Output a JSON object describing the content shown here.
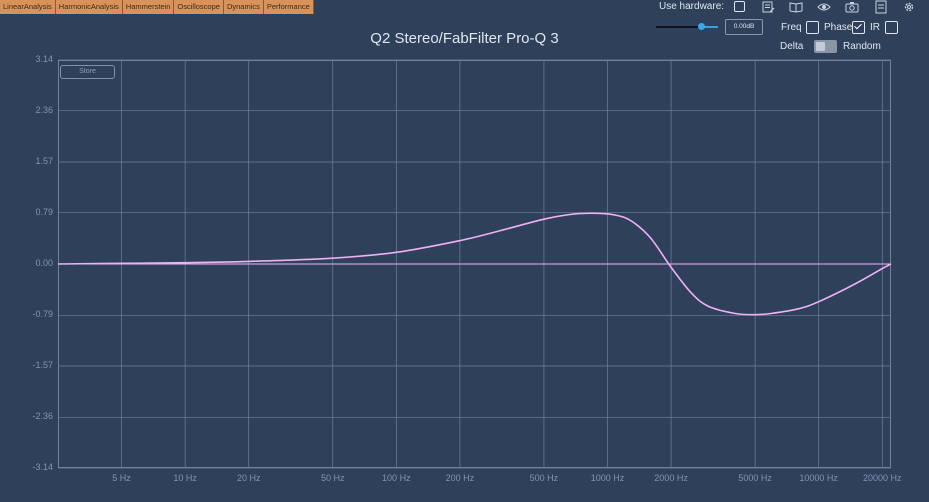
{
  "tabs": [
    "LinearAnalysis",
    "HarmonicAnalysis",
    "Hammerstein",
    "Oscilloscope",
    "Dynamics",
    "Performance"
  ],
  "header": {
    "title": "Q2 Stereo/FabFilter Pro-Q 3",
    "use_hardware_label": "Use hardware:",
    "gain_value": "0.00dB",
    "freq_label": "Freq",
    "phase_label": "Phase",
    "ir_label": "IR",
    "delta_label": "Delta",
    "random_label": "Random",
    "store_label": "Store"
  },
  "toolbar_icons": [
    "notes-icon",
    "book-icon",
    "eye-icon",
    "camera-icon",
    "document-icon",
    "gear-icon"
  ],
  "colors": {
    "background": "#2f405a",
    "grid": "#6e82a0",
    "curve": "#f0b0f5",
    "tab": "#d9935a"
  },
  "chart_data": {
    "type": "line",
    "xscale": "log",
    "xlim": [
      2.5,
      22000
    ],
    "ylim": [
      -3.14,
      3.14
    ],
    "yticks": [
      "3.14",
      "2.36",
      "1.57",
      "0.79",
      "0.00",
      "-0.79",
      "-1.57",
      "-2.36",
      "-3.14"
    ],
    "xticks": [
      "5 Hz",
      "10 Hz",
      "20 Hz",
      "50 Hz",
      "100 Hz",
      "200 Hz",
      "500 Hz",
      "1000 Hz",
      "2000 Hz",
      "5000 Hz",
      "10000 Hz",
      "20000 Hz"
    ],
    "series": [
      {
        "color": "#f0b0f5",
        "x": [
          2.5,
          5,
          10,
          20,
          50,
          100,
          200,
          300,
          500,
          700,
          900,
          1100,
          1300,
          1600,
          2000,
          2500,
          3000,
          4000,
          5000,
          6000,
          8000,
          10000,
          15000,
          20000,
          22000
        ],
        "y": [
          0.0,
          0.01,
          0.02,
          0.04,
          0.09,
          0.18,
          0.36,
          0.5,
          0.69,
          0.77,
          0.78,
          0.75,
          0.66,
          0.4,
          -0.05,
          -0.45,
          -0.65,
          -0.76,
          -0.78,
          -0.76,
          -0.69,
          -0.58,
          -0.3,
          -0.07,
          0.0
        ]
      },
      {
        "color": "#f0b0f5",
        "x": [
          2.5,
          22000
        ],
        "y": [
          0.0,
          0.0
        ]
      }
    ]
  }
}
